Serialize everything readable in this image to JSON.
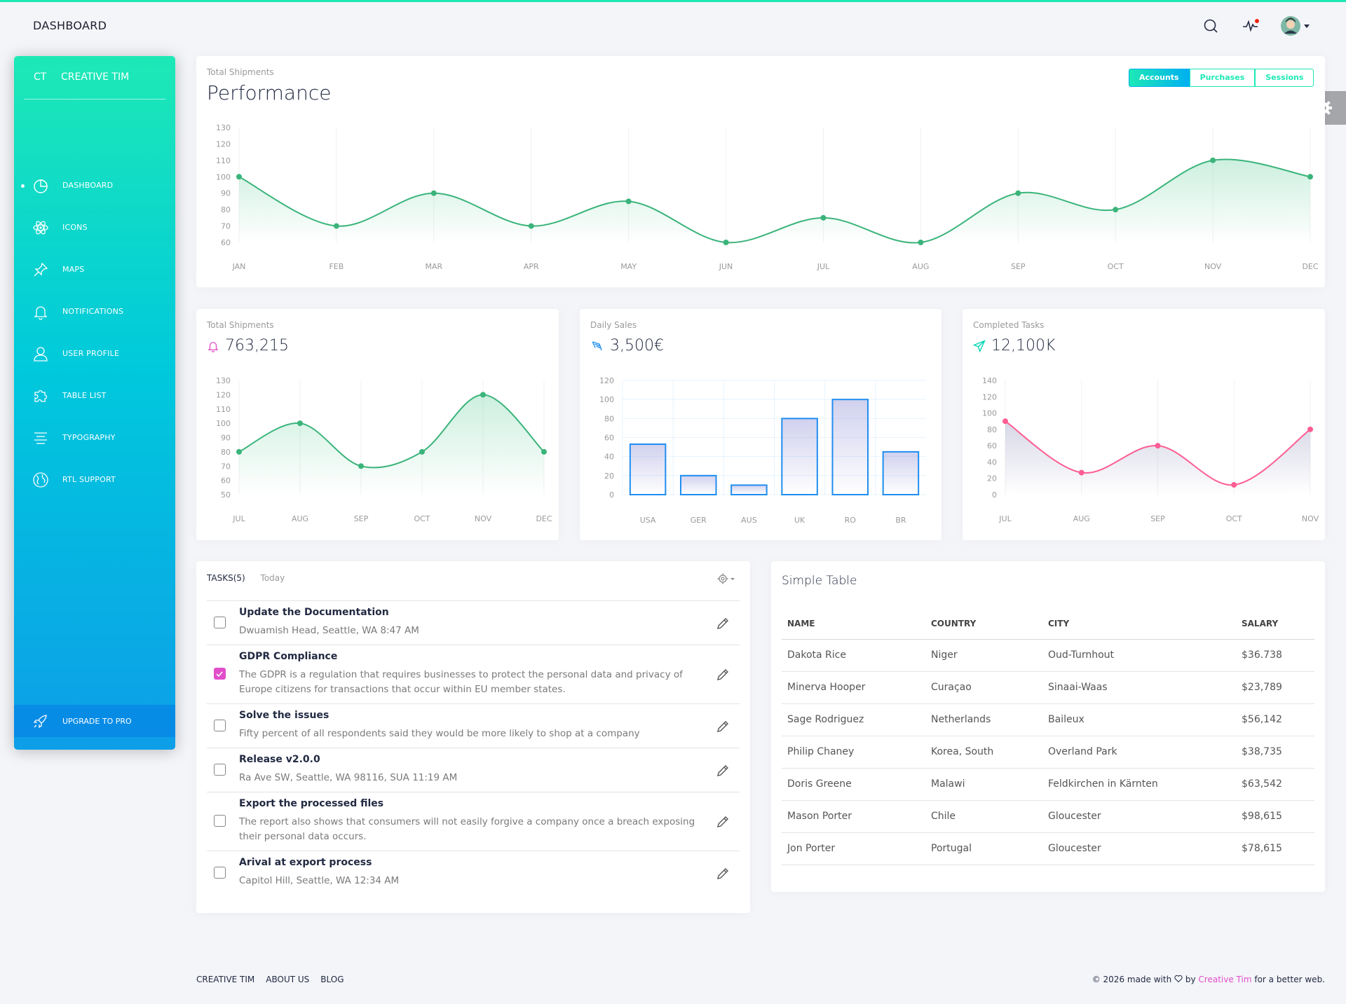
{
  "navbar": {
    "brand": "DASHBOARD"
  },
  "sidebar": {
    "logo_mini": "CT",
    "logo_full": "CREATIVE TIM",
    "items": [
      {
        "label": "DASHBOARD",
        "icon": "chart-pie-icon",
        "active": true
      },
      {
        "label": "ICONS",
        "icon": "atom-icon"
      },
      {
        "label": "MAPS",
        "icon": "pin-icon"
      },
      {
        "label": "NOTIFICATIONS",
        "icon": "bell-icon"
      },
      {
        "label": "USER PROFILE",
        "icon": "user-icon"
      },
      {
        "label": "TABLE LIST",
        "icon": "puzzle-icon"
      },
      {
        "label": "TYPOGRAPHY",
        "icon": "align-center-icon"
      },
      {
        "label": "RTL SUPPORT",
        "icon": "world-icon"
      }
    ],
    "upgrade": "UPGRADE TO PRO"
  },
  "performance": {
    "category": "Total Shipments",
    "title": "Performance",
    "toggles": [
      "Accounts",
      "Purchases",
      "Sessions"
    ],
    "active_toggle": "Accounts"
  },
  "shipments": {
    "category": "Total Shipments",
    "value": "763,215"
  },
  "daily_sales": {
    "category": "Daily Sales",
    "value": "3,500€"
  },
  "completed": {
    "category": "Completed Tasks",
    "value": "12,100K"
  },
  "tasks": {
    "header": "TASKS(5)",
    "today": "Today",
    "items": [
      {
        "title": "Update the Documentation",
        "desc": "Dwuamish Head, Seattle, WA 8:47 AM",
        "checked": false
      },
      {
        "title": "GDPR Compliance",
        "desc": "The GDPR is a regulation that requires businesses to protect the personal data and privacy of Europe citizens for transactions that occur within EU member states.",
        "checked": true
      },
      {
        "title": "Solve the issues",
        "desc": "Fifty percent of all respondents said they would be more likely to shop at a company",
        "checked": false
      },
      {
        "title": "Release v2.0.0",
        "desc": "Ra Ave SW, Seattle, WA 98116, SUA 11:19 AM",
        "checked": false
      },
      {
        "title": "Export the processed files",
        "desc": "The report also shows that consumers will not easily forgive a company once a breach exposing their personal data occurs.",
        "checked": false
      },
      {
        "title": "Arival at export process",
        "desc": "Capitol Hill, Seattle, WA 12:34 AM",
        "checked": false
      }
    ]
  },
  "simple_table": {
    "title": "Simple Table",
    "headers": [
      "NAME",
      "COUNTRY",
      "CITY",
      "SALARY"
    ],
    "rows": [
      [
        "Dakota Rice",
        "Niger",
        "Oud-Turnhout",
        "$36.738"
      ],
      [
        "Minerva Hooper",
        "Curaçao",
        "Sinaai-Waas",
        "$23,789"
      ],
      [
        "Sage Rodriguez",
        "Netherlands",
        "Baileux",
        "$56,142"
      ],
      [
        "Philip Chaney",
        "Korea, South",
        "Overland Park",
        "$38,735"
      ],
      [
        "Doris Greene",
        "Malawi",
        "Feldkirchen in Kärnten",
        "$63,542"
      ],
      [
        "Mason Porter",
        "Chile",
        "Gloucester",
        "$98,615"
      ],
      [
        "Jon Porter",
        "Portugal",
        "Gloucester",
        "$78,615"
      ]
    ]
  },
  "footer": {
    "links": [
      "CREATIVE TIM",
      "ABOUT US",
      "BLOG"
    ],
    "copy_prefix": "© 2026 made with",
    "copy_by": "by",
    "copy_link": "Creative Tim",
    "copy_suffix": "for a better web."
  },
  "colors": {
    "accent": "#1de9b6",
    "green": "#00d6b4",
    "blue": "#1f8ef1",
    "pink": "#fd5d93",
    "magenta": "#e14eca"
  },
  "chart_data": [
    {
      "type": "line",
      "x": [
        "JAN",
        "FEB",
        "MAR",
        "APR",
        "MAY",
        "JUN",
        "JUL",
        "AUG",
        "SEP",
        "OCT",
        "NOV",
        "DEC"
      ],
      "series": [
        {
          "values": [
            100,
            70,
            90,
            70,
            85,
            60,
            75,
            60,
            90,
            80,
            110,
            100
          ]
        }
      ],
      "yticks": [
        60,
        70,
        80,
        90,
        100,
        110,
        120,
        130
      ],
      "ylim": [
        60,
        130
      ]
    },
    {
      "type": "line",
      "x": [
        "JUL",
        "AUG",
        "SEP",
        "OCT",
        "NOV",
        "DEC"
      ],
      "series": [
        {
          "values": [
            80,
            100,
            70,
            80,
            120,
            80
          ]
        }
      ],
      "yticks": [
        50,
        60,
        70,
        80,
        90,
        100,
        110,
        120,
        130
      ],
      "ylim": [
        50,
        130
      ]
    },
    {
      "type": "bar",
      "categories": [
        "USA",
        "GER",
        "AUS",
        "UK",
        "RO",
        "BR"
      ],
      "values": [
        53,
        20,
        10,
        80,
        100,
        45
      ],
      "yticks": [
        0,
        20,
        40,
        60,
        80,
        100,
        120
      ],
      "ylim": [
        0,
        120
      ]
    },
    {
      "type": "line",
      "x": [
        "JUL",
        "AUG",
        "SEP",
        "OCT",
        "NOV"
      ],
      "series": [
        {
          "values": [
            90,
            27,
            60,
            12,
            80
          ]
        }
      ],
      "yticks": [
        0,
        20,
        40,
        60,
        80,
        100,
        120,
        140
      ],
      "ylim": [
        0,
        140
      ]
    }
  ]
}
